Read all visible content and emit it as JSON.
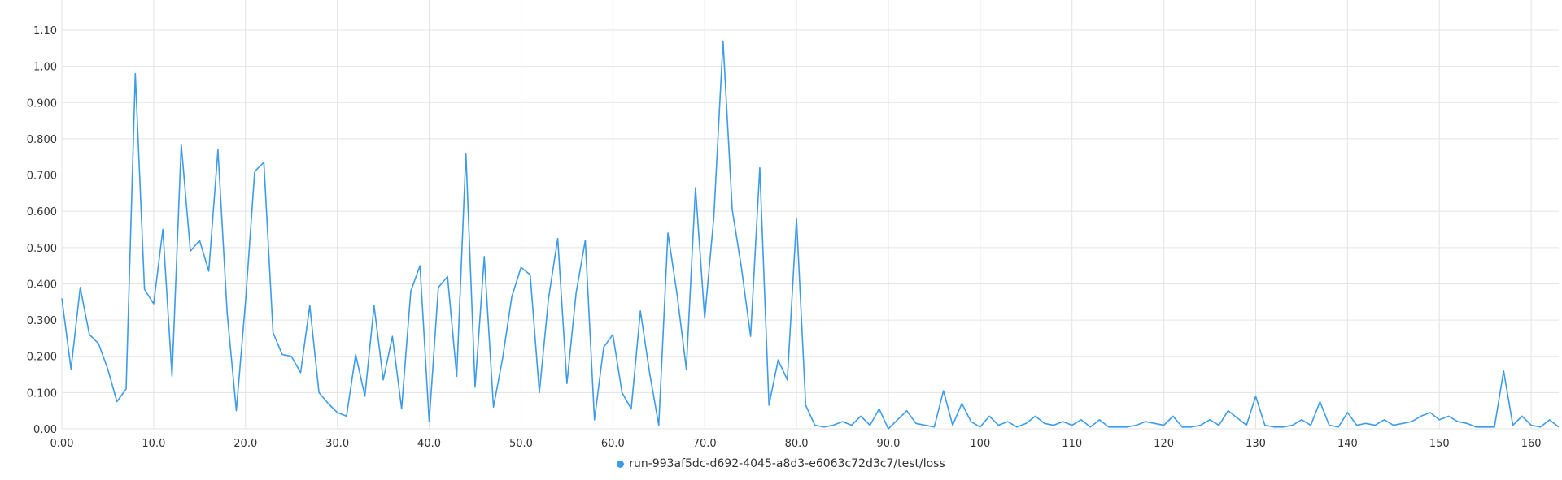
{
  "chart_data": {
    "type": "line",
    "title": "",
    "xlabel": "",
    "ylabel": "",
    "xlim": [
      0,
      163
    ],
    "ylim": [
      0,
      1.1
    ],
    "x_ticks": [
      0,
      10,
      20,
      30,
      40,
      50,
      60,
      70,
      80,
      90,
      100,
      110,
      120,
      130,
      140,
      150,
      160
    ],
    "x_tick_labels": [
      "0.00",
      "10.0",
      "20.0",
      "30.0",
      "40.0",
      "50.0",
      "60.0",
      "70.0",
      "80.0",
      "90.0",
      "100",
      "110",
      "120",
      "130",
      "140",
      "150",
      "160"
    ],
    "y_ticks": [
      0,
      0.1,
      0.2,
      0.3,
      0.4,
      0.5,
      0.6,
      0.7,
      0.8,
      0.9,
      1.0,
      1.1
    ],
    "y_tick_labels": [
      "0.00",
      "0.100",
      "0.200",
      "0.300",
      "0.400",
      "0.500",
      "0.600",
      "0.700",
      "0.800",
      "0.900",
      "1.00",
      "1.10"
    ],
    "grid": true,
    "legend_position": "bottom-center",
    "series": [
      {
        "name": "run-993af5dc-d692-4045-a8d3-e6063c72d3c7/test/loss",
        "color": "#3d9be9",
        "x": [
          0,
          1,
          2,
          3,
          4,
          5,
          6,
          7,
          8,
          9,
          10,
          11,
          12,
          13,
          14,
          15,
          16,
          17,
          18,
          19,
          20,
          21,
          22,
          23,
          24,
          25,
          26,
          27,
          28,
          29,
          30,
          31,
          32,
          33,
          34,
          35,
          36,
          37,
          38,
          39,
          40,
          41,
          42,
          43,
          44,
          45,
          46,
          47,
          48,
          49,
          50,
          51,
          52,
          53,
          54,
          55,
          56,
          57,
          58,
          59,
          60,
          61,
          62,
          63,
          64,
          65,
          66,
          67,
          68,
          69,
          70,
          71,
          72,
          73,
          74,
          75,
          76,
          77,
          78,
          79,
          80,
          81,
          82,
          83,
          84,
          85,
          86,
          87,
          88,
          89,
          90,
          91,
          92,
          93,
          94,
          95,
          96,
          97,
          98,
          99,
          100,
          101,
          102,
          103,
          104,
          105,
          106,
          107,
          108,
          109,
          110,
          111,
          112,
          113,
          114,
          115,
          116,
          117,
          118,
          119,
          120,
          121,
          122,
          123,
          124,
          125,
          126,
          127,
          128,
          129,
          130,
          131,
          132,
          133,
          134,
          135,
          136,
          137,
          138,
          139,
          140,
          141,
          142,
          143,
          144,
          145,
          146,
          147,
          148,
          149,
          150,
          151,
          152,
          153,
          154,
          155,
          156,
          157,
          158,
          159,
          160,
          161,
          162,
          163
        ],
        "y": [
          0.36,
          0.165,
          0.39,
          0.26,
          0.235,
          0.165,
          0.075,
          0.11,
          0.98,
          0.385,
          0.345,
          0.55,
          0.145,
          0.785,
          0.49,
          0.52,
          0.435,
          0.77,
          0.32,
          0.05,
          0.35,
          0.71,
          0.735,
          0.265,
          0.205,
          0.2,
          0.155,
          0.34,
          0.1,
          0.07,
          0.045,
          0.035,
          0.205,
          0.09,
          0.34,
          0.135,
          0.255,
          0.055,
          0.38,
          0.45,
          0.02,
          0.39,
          0.42,
          0.145,
          0.76,
          0.115,
          0.475,
          0.06,
          0.195,
          0.365,
          0.445,
          0.425,
          0.1,
          0.36,
          0.525,
          0.125,
          0.375,
          0.52,
          0.025,
          0.225,
          0.26,
          0.1,
          0.055,
          0.325,
          0.155,
          0.01,
          0.54,
          0.37,
          0.165,
          0.665,
          0.305,
          0.585,
          1.07,
          0.605,
          0.445,
          0.255,
          0.72,
          0.065,
          0.19,
          0.135,
          0.58,
          0.065,
          0.01,
          0.005,
          0.01,
          0.02,
          0.01,
          0.035,
          0.01,
          0.055,
          0.0,
          0.025,
          0.05,
          0.015,
          0.01,
          0.005,
          0.105,
          0.01,
          0.07,
          0.02,
          0.005,
          0.035,
          0.01,
          0.02,
          0.005,
          0.015,
          0.035,
          0.015,
          0.01,
          0.02,
          0.01,
          0.025,
          0.005,
          0.025,
          0.005,
          0.005,
          0.005,
          0.01,
          0.02,
          0.015,
          0.01,
          0.035,
          0.005,
          0.005,
          0.01,
          0.025,
          0.01,
          0.05,
          0.03,
          0.01,
          0.09,
          0.01,
          0.005,
          0.005,
          0.01,
          0.025,
          0.01,
          0.075,
          0.01,
          0.005,
          0.045,
          0.01,
          0.015,
          0.01,
          0.025,
          0.01,
          0.015,
          0.02,
          0.035,
          0.045,
          0.025,
          0.035,
          0.02,
          0.015,
          0.005,
          0.005,
          0.005,
          0.16,
          0.01,
          0.035,
          0.01,
          0.005,
          0.025,
          0.005
        ]
      }
    ]
  }
}
